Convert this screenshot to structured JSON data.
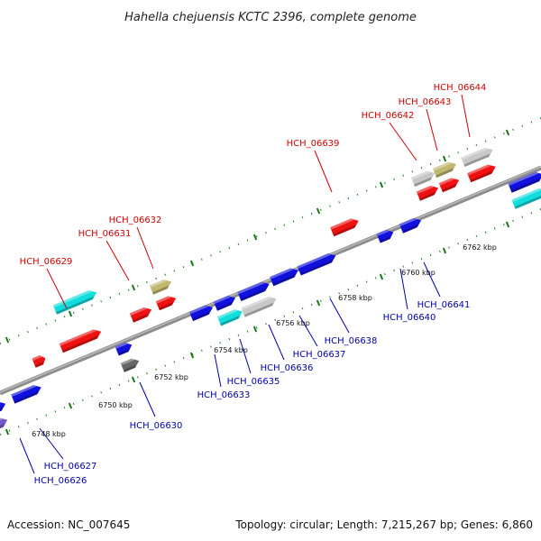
{
  "title": "Hahella chejuensis KCTC 2396, complete genome",
  "footer": {
    "accession": "Accession: NC_007645",
    "summary": "Topology: circular; Length: 7,215,267 bp; Genes: 6,860"
  },
  "colors": {
    "backbone": "#8c8c8c",
    "tick": "#1a7a1a",
    "top_label": "#cc0000",
    "bottom_label": "#0000aa",
    "red": "#ee1111",
    "blue": "#1111dd",
    "cyan": "#11dddd",
    "grey": "#c8c8c8",
    "olive": "#c0b870",
    "darkgrey": "#666666",
    "purple": "#7755cc"
  },
  "kbp_labels": [
    "6748 kbp",
    "6750 kbp",
    "6752 kbp",
    "6754 kbp",
    "6756 kbp",
    "6758 kbp",
    "6760 kbp",
    "6762 kbp"
  ],
  "top_labels": [
    "HCH_06629",
    "HCH_06631",
    "HCH_06632",
    "HCH_06639",
    "HCH_06642",
    "HCH_06643",
    "HCH_06644"
  ],
  "bottom_labels": [
    "HCH_06626",
    "HCH_06627",
    "HCH_06630",
    "HCH_06633",
    "HCH_06635",
    "HCH_06636",
    "HCH_06637",
    "HCH_06638",
    "HCH_06640",
    "HCH_06641"
  ]
}
